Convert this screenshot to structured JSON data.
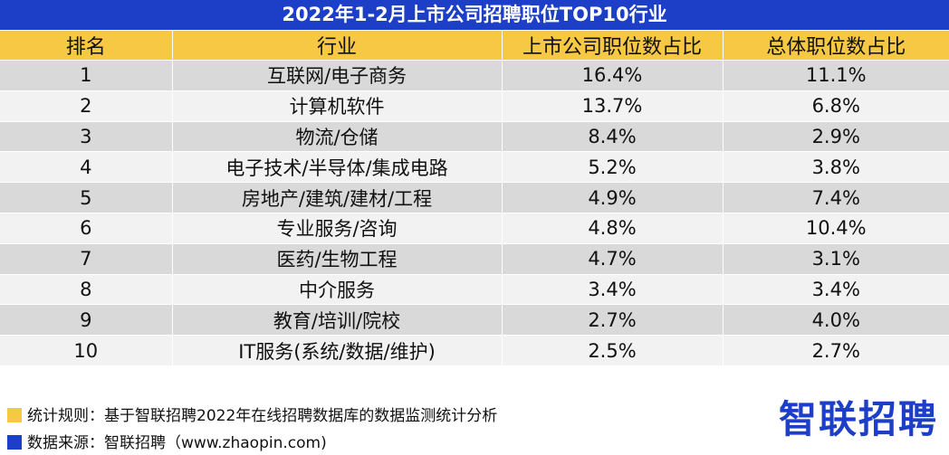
{
  "title": "2022年1-2月上市公司招聘职位TOP10行业",
  "headers": [
    "排名",
    "行业",
    "上市公司职位数占比",
    "总体职位数占比"
  ],
  "rows": [
    [
      "1",
      "互联网/电子商务",
      "16.4%",
      "11.1%"
    ],
    [
      "2",
      "计算机软件",
      "13.7%",
      "6.8%"
    ],
    [
      "3",
      "物流/仓储",
      "8.4%",
      "2.9%"
    ],
    [
      "4",
      "电子技术/半导体/集成电路",
      "5.2%",
      "3.8%"
    ],
    [
      "5",
      "房地产/建筑/建材/工程",
      "4.9%",
      "7.4%"
    ],
    [
      "6",
      "专业服务/咨询",
      "4.8%",
      "10.4%"
    ],
    [
      "7",
      "医药/生物工程",
      "4.7%",
      "3.1%"
    ],
    [
      "8",
      "中介服务",
      "3.4%",
      "3.4%"
    ],
    [
      "9",
      "教育/培训/院校",
      "2.7%",
      "4.0%"
    ],
    [
      "10",
      "IT服务(系统/数据/维护)",
      "2.5%",
      "2.7%"
    ]
  ],
  "footer": {
    "rule": "统计规则：基于智联招聘2022年在线招聘数据库的数据监测统计分析",
    "source": "数据来源：智联招聘（www.zhaopin.com)",
    "rule_color": "#f7c843",
    "source_color": "#1d3fc7"
  },
  "logo": "智联招聘",
  "colors": {
    "title_bg": "#1d3fc7",
    "header_bg": "#f7c843",
    "row_dark": "#d9d9d9",
    "row_light": "#f2f2f2"
  }
}
